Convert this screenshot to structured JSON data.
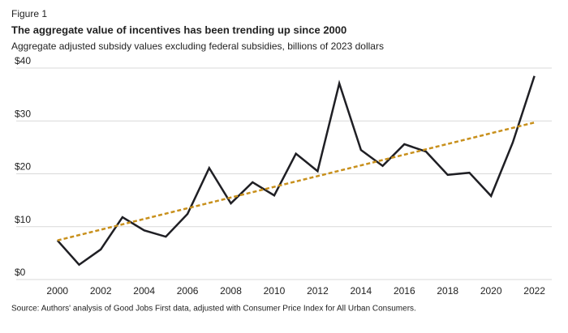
{
  "figure_label": "Figure 1",
  "chart_data": {
    "type": "line",
    "title": "The aggregate value of incentives has been trending up since 2000",
    "subtitle": "Aggregate adjusted subsidy values excluding federal subsidies, billions of 2023 dollars",
    "source": "Source: Authors' analysis of Good Jobs First data, adjusted with Consumer Price Index for All Urban Consumers.",
    "x": [
      2000,
      2001,
      2002,
      2003,
      2004,
      2005,
      2006,
      2007,
      2008,
      2009,
      2010,
      2011,
      2012,
      2013,
      2014,
      2015,
      2016,
      2017,
      2018,
      2019,
      2020,
      2021,
      2022
    ],
    "series": [
      {
        "color": "#1f1f24",
        "values": [
          7.4,
          2.8,
          5.7,
          11.8,
          9.3,
          8.1,
          12.4,
          21.1,
          14.4,
          18.4,
          15.9,
          23.8,
          20.5,
          37.1,
          24.5,
          21.5,
          25.6,
          24.2,
          19.8,
          20.2,
          15.8,
          25.9,
          38.5
        ]
      }
    ],
    "trend": {
      "color": "#c8901c",
      "x": [
        2000,
        2022
      ],
      "values": [
        7.4,
        29.7
      ]
    },
    "xlim": [
      1998.1,
      2022.8
    ],
    "xticks": [
      2000,
      2002,
      2004,
      2006,
      2008,
      2010,
      2012,
      2014,
      2016,
      2018,
      2020,
      2022
    ],
    "ylim": [
      0,
      40
    ],
    "yticks": [
      {
        "value": 0,
        "label": "$0"
      },
      {
        "value": 10,
        "label": "$10"
      },
      {
        "value": 20,
        "label": "$20"
      },
      {
        "value": 30,
        "label": "$30"
      },
      {
        "value": 40,
        "label": "$40"
      }
    ],
    "grid": true
  }
}
